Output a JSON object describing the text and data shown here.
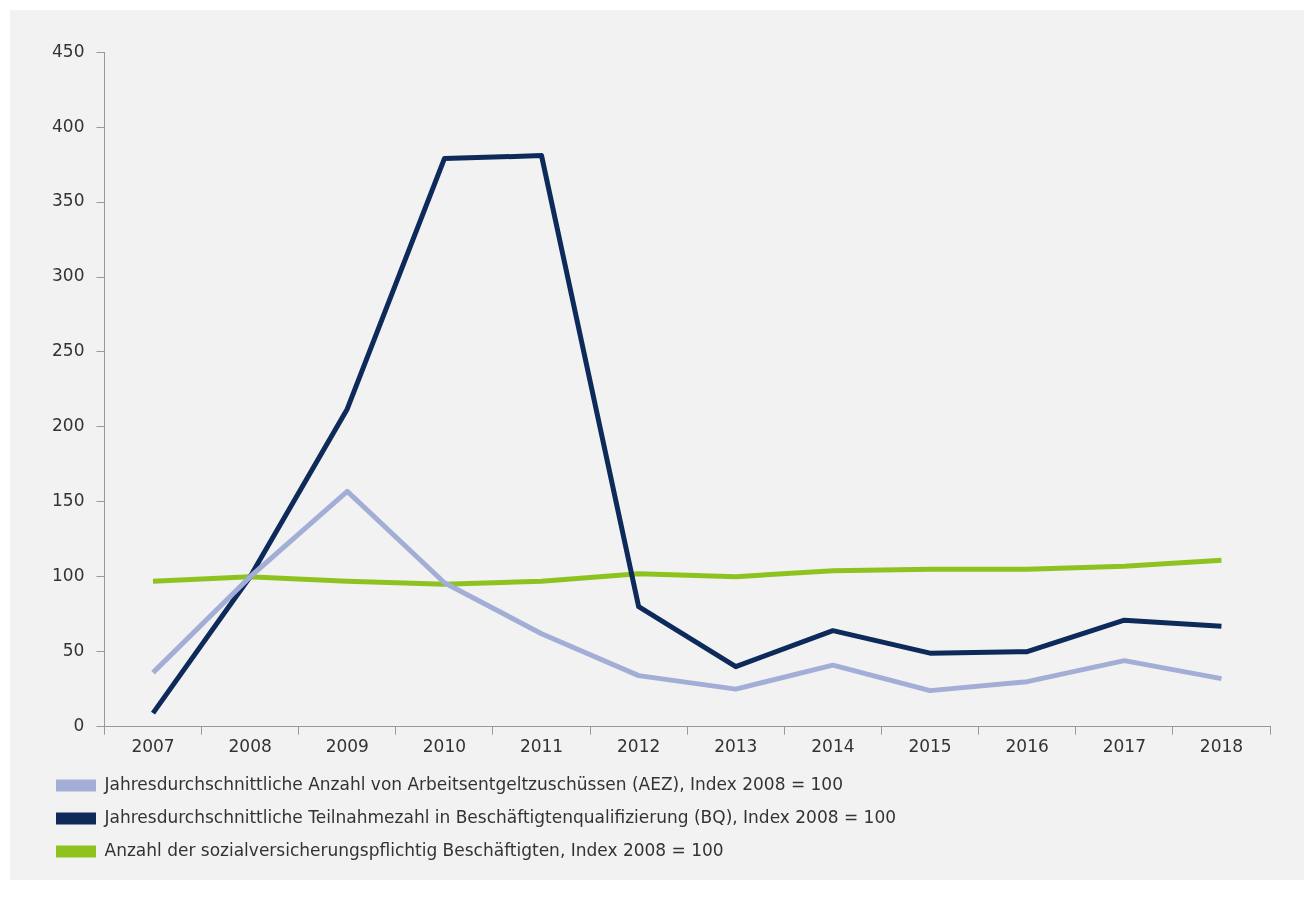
{
  "chart_data": {
    "type": "line",
    "categories": [
      "2007",
      "2008",
      "2009",
      "2010",
      "2011",
      "2012",
      "2013",
      "2014",
      "2015",
      "2016",
      "2017",
      "2018"
    ],
    "series": [
      {
        "name": "Jahresdurchschnittliche Anzahl von Arbeitsentgeltzuschüssen (AEZ), Index 2008 = 100",
        "color": "#a3aed6",
        "values": [
          36,
          100,
          157,
          96,
          62,
          34,
          25,
          41,
          24,
          30,
          44,
          32
        ]
      },
      {
        "name": "Jahresdurchschnittliche Teilnahmezahl in Beschäftigtenqualifizierung (BQ), Index 2008 = 100",
        "color": "#0d2a5a",
        "values": [
          9,
          100,
          212,
          379,
          381,
          80,
          40,
          64,
          49,
          50,
          71,
          67
        ]
      },
      {
        "name": "Anzahl der sozialversicherungspflichtig Beschäftigten, Index 2008 = 100",
        "color": "#8ec31f",
        "values": [
          97,
          100,
          97,
          95,
          97,
          102,
          100,
          104,
          105,
          105,
          107,
          111
        ]
      }
    ],
    "ylim": [
      0,
      450
    ],
    "yticks": [
      0,
      50,
      100,
      150,
      200,
      250,
      300,
      350,
      400,
      450
    ],
    "grid": false,
    "legend": "bottom",
    "marker": "none",
    "line_style": "solid"
  }
}
